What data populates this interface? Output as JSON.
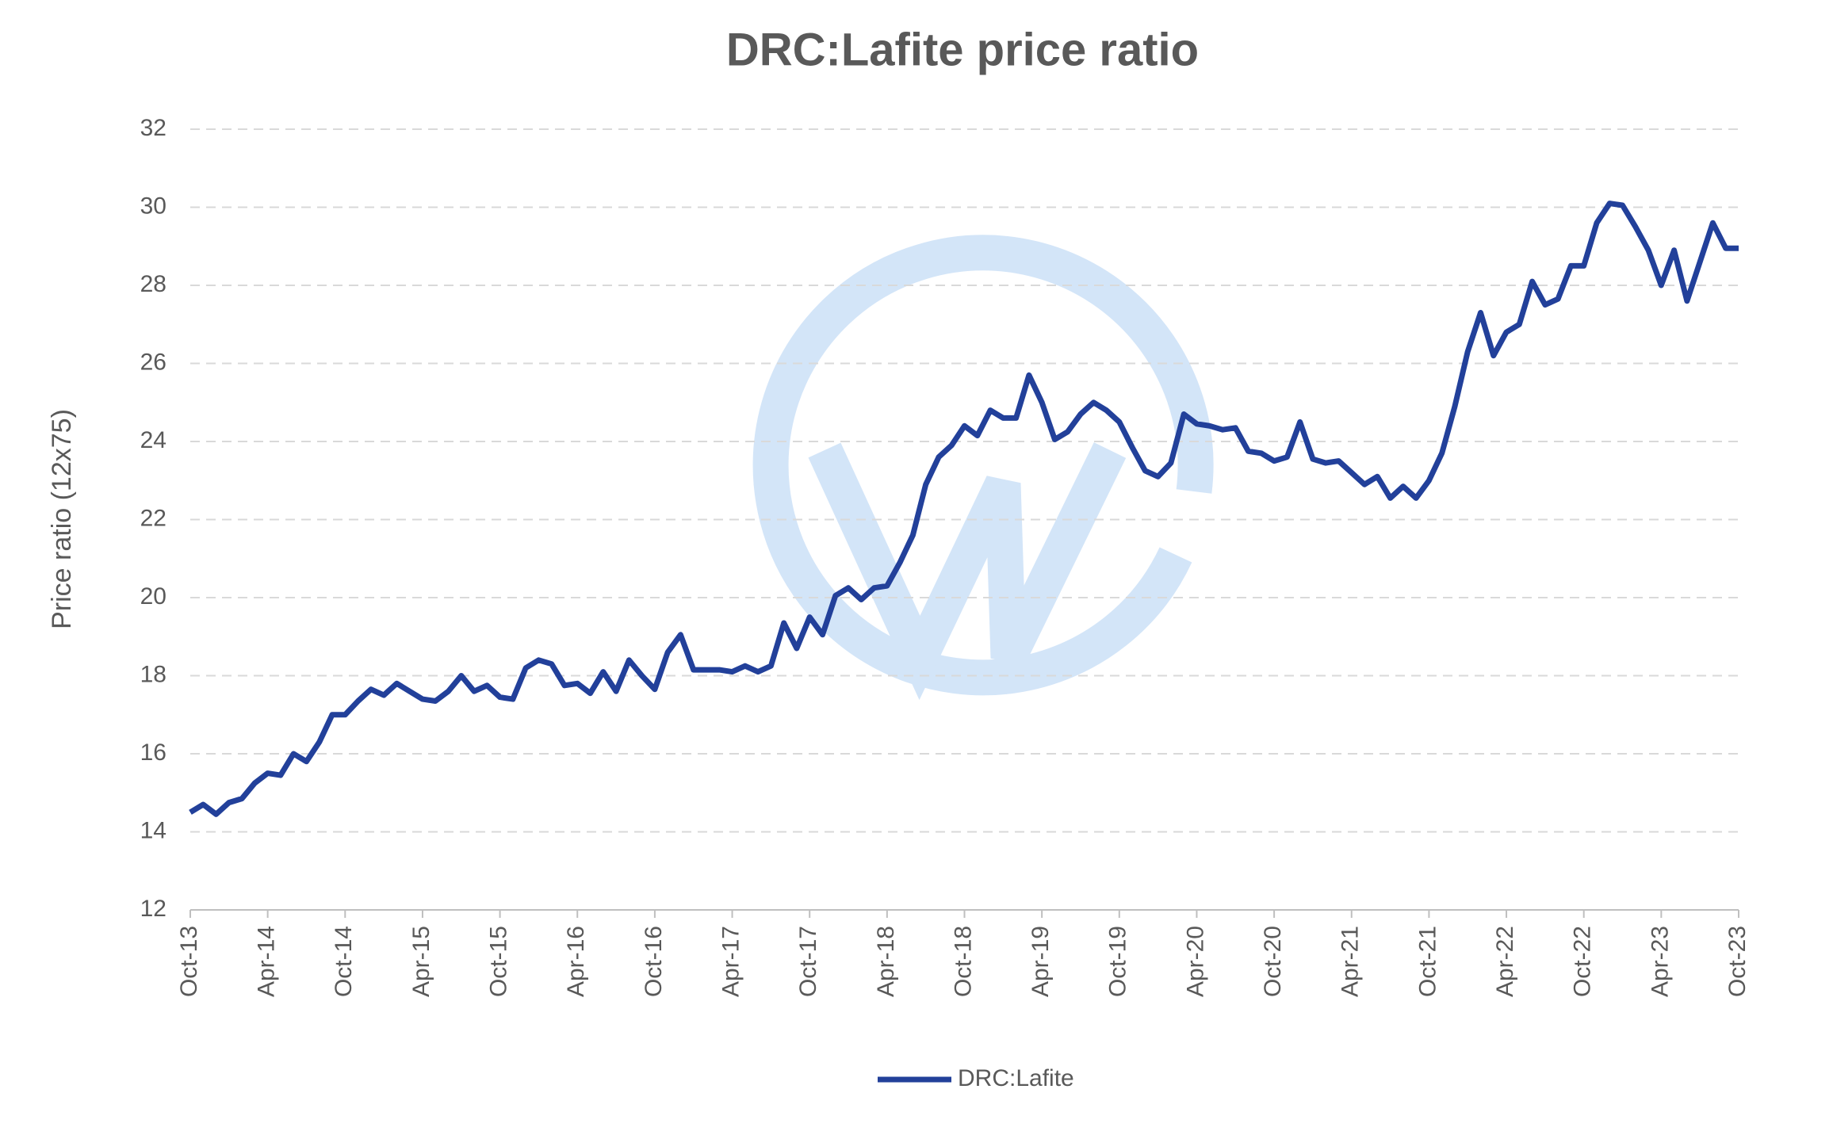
{
  "chart_data": {
    "type": "line",
    "title": "DRC:Lafite price ratio",
    "y_label": "Price ratio (12x75)",
    "categories": [
      "Oct-13",
      null,
      null,
      null,
      null,
      null,
      "Apr-14",
      null,
      null,
      null,
      null,
      null,
      "Oct-14",
      null,
      null,
      null,
      null,
      null,
      "Apr-15",
      null,
      null,
      null,
      null,
      null,
      "Oct-15",
      null,
      null,
      null,
      null,
      null,
      "Apr-16",
      null,
      null,
      null,
      null,
      null,
      "Oct-16",
      null,
      null,
      null,
      null,
      null,
      "Apr-17",
      null,
      null,
      null,
      null,
      null,
      "Oct-17",
      null,
      null,
      null,
      null,
      null,
      "Apr-18",
      null,
      null,
      null,
      null,
      null,
      "Oct-18",
      null,
      null,
      null,
      null,
      null,
      "Apr-19",
      null,
      null,
      null,
      null,
      null,
      "Oct-19",
      null,
      null,
      null,
      null,
      null,
      "Apr-20",
      null,
      null,
      null,
      null,
      null,
      "Oct-20",
      null,
      null,
      null,
      null,
      null,
      "Apr-21",
      null,
      null,
      null,
      null,
      null,
      "Oct-21",
      null,
      null,
      null,
      null,
      null,
      "Apr-22",
      null,
      null,
      null,
      null,
      null,
      "Oct-22",
      null,
      null,
      null,
      null,
      null,
      "Apr-23",
      null,
      null,
      null,
      null,
      null,
      "Oct-23"
    ],
    "series": [
      {
        "name": "DRC:Lafite",
        "color": "#22409a",
        "values": [
          14.5,
          14.7,
          14.45,
          14.75,
          14.85,
          15.25,
          15.5,
          15.45,
          16.0,
          15.8,
          16.3,
          17.0,
          17.0,
          17.35,
          17.65,
          17.5,
          17.8,
          17.6,
          17.4,
          17.35,
          17.6,
          18.0,
          17.6,
          17.75,
          17.45,
          17.4,
          18.2,
          18.4,
          18.3,
          17.75,
          17.8,
          17.55,
          18.1,
          17.6,
          18.4,
          18.0,
          17.65,
          18.6,
          19.05,
          18.15,
          18.15,
          18.15,
          18.1,
          18.25,
          18.1,
          18.25,
          19.35,
          18.7,
          19.5,
          19.05,
          20.05,
          20.25,
          19.95,
          20.25,
          20.3,
          20.9,
          21.6,
          22.9,
          23.6,
          23.9,
          24.4,
          24.15,
          24.8,
          24.6,
          24.6,
          25.7,
          25.0,
          24.05,
          24.25,
          24.7,
          25.0,
          24.8,
          24.5,
          23.85,
          23.25,
          23.1,
          23.45,
          24.7,
          24.45,
          24.4,
          24.3,
          24.35,
          23.75,
          23.7,
          23.5,
          23.6,
          24.5,
          23.55,
          23.45,
          23.5,
          23.2,
          22.9,
          23.1,
          22.55,
          22.85,
          22.55,
          23.0,
          23.7,
          24.9,
          26.3,
          27.3,
          26.2,
          26.8,
          27.0,
          28.1,
          27.5,
          27.65,
          28.5,
          28.5,
          29.6,
          30.1,
          30.05,
          29.5,
          28.9,
          28.0,
          28.9,
          27.6,
          28.6,
          29.6,
          28.95,
          28.95
        ]
      }
    ],
    "ylim": [
      12,
      32
    ],
    "yticks": [
      12,
      14,
      16,
      18,
      20,
      22,
      24,
      26,
      28,
      30,
      32
    ],
    "grid": true,
    "legend": "bottom"
  }
}
